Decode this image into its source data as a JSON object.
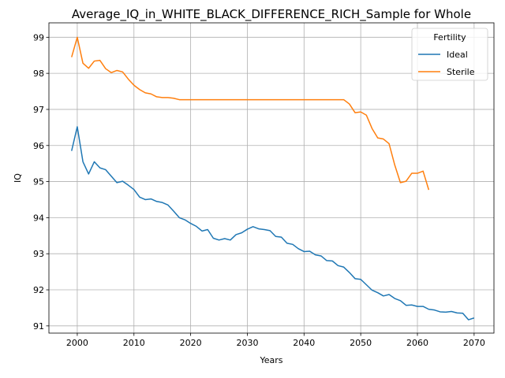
{
  "chart_data": {
    "type": "line",
    "title": "Average_IQ_in_WHITE_BLACK_DIFFERENCE_RICH_Sample for Whole",
    "xlabel": "Years",
    "ylabel": "IQ",
    "xlim": [
      1995.0,
      2073.5
    ],
    "ylim": [
      90.8,
      99.4
    ],
    "xticks": [
      2000,
      2010,
      2020,
      2030,
      2040,
      2050,
      2060,
      2070
    ],
    "yticks": [
      91,
      92,
      93,
      94,
      95,
      96,
      97,
      98,
      99
    ],
    "grid": true,
    "legend": {
      "title": "Fertility",
      "placement": "top-right"
    },
    "series": [
      {
        "name": "Ideal",
        "color": "#1f77b4",
        "x": [
          1999,
          2000,
          2001,
          2002,
          2003,
          2004,
          2005,
          2006,
          2007,
          2008,
          2009,
          2010,
          2011,
          2012,
          2013,
          2014,
          2015,
          2016,
          2017,
          2018,
          2019,
          2020,
          2021,
          2022,
          2023,
          2024,
          2025,
          2026,
          2027,
          2028,
          2029,
          2030,
          2031,
          2032,
          2033,
          2034,
          2035,
          2036,
          2037,
          2038,
          2039,
          2040,
          2041,
          2042,
          2043,
          2044,
          2045,
          2046,
          2047,
          2048,
          2049,
          2050,
          2051,
          2052,
          2053,
          2054,
          2055,
          2056,
          2057,
          2058,
          2059,
          2060,
          2061,
          2062,
          2063,
          2064,
          2065,
          2066,
          2067,
          2068,
          2069,
          2070
        ],
        "values": [
          95.85,
          96.52,
          95.55,
          95.21,
          95.55,
          95.38,
          95.33,
          95.15,
          94.97,
          95.01,
          94.9,
          94.78,
          94.57,
          94.5,
          94.52,
          94.45,
          94.42,
          94.35,
          94.18,
          94.0,
          93.94,
          93.84,
          93.76,
          93.63,
          93.67,
          93.43,
          93.38,
          93.42,
          93.38,
          93.53,
          93.58,
          93.68,
          93.75,
          93.69,
          93.67,
          93.64,
          93.48,
          93.46,
          93.29,
          93.26,
          93.14,
          93.06,
          93.07,
          92.97,
          92.94,
          92.81,
          92.8,
          92.67,
          92.63,
          92.48,
          92.31,
          92.29,
          92.14,
          91.99,
          91.92,
          91.83,
          91.87,
          91.76,
          91.7,
          91.57,
          91.58,
          91.54,
          91.54,
          91.46,
          91.44,
          91.39,
          91.38,
          91.4,
          91.36,
          91.35,
          91.17,
          91.22
        ]
      },
      {
        "name": "Sterile",
        "color": "#ff7f0e",
        "x": [
          1999,
          2000,
          2001,
          2002,
          2003,
          2004,
          2005,
          2006,
          2007,
          2008,
          2009,
          2010,
          2011,
          2012,
          2013,
          2014,
          2015,
          2016,
          2017,
          2018,
          2019,
          2020,
          2021,
          2022,
          2023,
          2024,
          2025,
          2026,
          2027,
          2028,
          2029,
          2030,
          2031,
          2032,
          2033,
          2034,
          2035,
          2036,
          2037,
          2038,
          2039,
          2040,
          2041,
          2042,
          2043,
          2044,
          2045,
          2046,
          2047,
          2048,
          2049,
          2050,
          2051,
          2052,
          2053,
          2054,
          2055,
          2056,
          2057,
          2058,
          2059,
          2060,
          2061,
          2062
        ],
        "values": [
          98.45,
          99.0,
          98.28,
          98.14,
          98.34,
          98.36,
          98.13,
          98.02,
          98.08,
          98.04,
          97.84,
          97.67,
          97.55,
          97.46,
          97.43,
          97.35,
          97.33,
          97.33,
          97.31,
          97.27,
          97.27,
          97.27,
          97.27,
          97.27,
          97.27,
          97.27,
          97.27,
          97.27,
          97.27,
          97.27,
          97.27,
          97.27,
          97.27,
          97.27,
          97.27,
          97.27,
          97.27,
          97.27,
          97.27,
          97.27,
          97.27,
          97.27,
          97.27,
          97.27,
          97.27,
          97.27,
          97.27,
          97.27,
          97.27,
          97.15,
          96.91,
          96.93,
          96.84,
          96.47,
          96.21,
          96.18,
          96.05,
          95.46,
          94.97,
          95.01,
          95.23,
          95.23,
          95.29,
          94.77
        ]
      }
    ]
  }
}
